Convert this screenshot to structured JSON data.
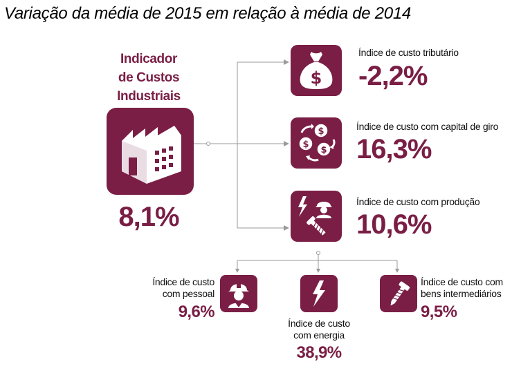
{
  "title": "Variação da média de 2015 em relação à média de 2014",
  "main": {
    "label_lines": [
      "Indicador",
      "de Custos",
      "Industriais"
    ],
    "value": "8,1%",
    "icon": "factory-icon"
  },
  "components": [
    {
      "label": "Índice de custo tributário",
      "value": "-2,2%",
      "icon": "money-bag-icon"
    },
    {
      "label": "Índice de custo com capital de giro",
      "value": "16,3%",
      "icon": "coins-cycle-icon"
    },
    {
      "label": "Índice de custo com produção",
      "value": "10,6%",
      "icon": "production-icon"
    }
  ],
  "production_components": [
    {
      "label_lines": [
        "Índice de custo",
        "com pessoal"
      ],
      "value": "9,6%",
      "icon": "worker-icon"
    },
    {
      "label_lines": [
        "Índice de custo",
        "com energia"
      ],
      "value": "38,9%",
      "icon": "lightning-icon"
    },
    {
      "label_lines": [
        "Índice de custo com",
        "bens intermediários"
      ],
      "value": "9,5%",
      "icon": "screw-icon"
    }
  ],
  "colors": {
    "accent": "#7a1e45",
    "line": "#9a9a9a"
  }
}
